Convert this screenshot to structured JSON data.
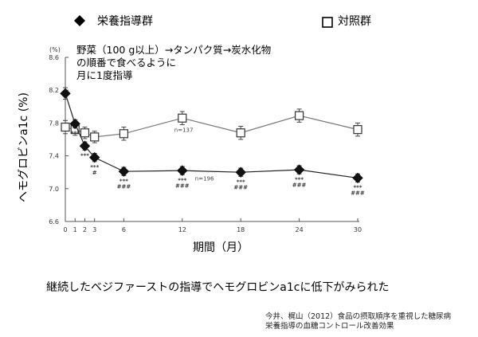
{
  "chart_data": {
    "type": "line",
    "ylabel": "ヘモグロビンa1c (%)",
    "y_unit": "(%)",
    "xlabel": "期間（月）",
    "ylim": [
      6.6,
      8.6
    ],
    "yticks": [
      "6.6",
      "7.0",
      "7.4",
      "7.8",
      "8.2",
      "8.6"
    ],
    "xticks": [
      "0",
      "1",
      "2",
      "3",
      "6",
      "12",
      "18",
      "24",
      "30"
    ],
    "legend": [
      {
        "marker": "diamond-filled",
        "label": "栄養指導群"
      },
      {
        "marker": "square-open",
        "label": "対照群"
      }
    ],
    "series": [
      {
        "name": "栄養指導群",
        "n_label": "n=196",
        "x": [
          0,
          1,
          2,
          3,
          6,
          12,
          18,
          24,
          30
        ],
        "y": [
          8.16,
          7.79,
          7.52,
          7.38,
          7.21,
          7.22,
          7.2,
          7.23,
          7.13
        ],
        "err": [
          0.07,
          0.05,
          0.05,
          0.05,
          0.05,
          0.05,
          0.05,
          0.05,
          0.05
        ]
      },
      {
        "name": "対照群",
        "n_label": "n=137",
        "x": [
          0,
          1,
          2,
          3,
          6,
          12,
          18,
          24,
          30
        ],
        "y": [
          7.75,
          7.72,
          7.68,
          7.63,
          7.67,
          7.86,
          7.68,
          7.89,
          7.72
        ],
        "err": [
          0.08,
          0.07,
          0.07,
          0.07,
          0.08,
          0.08,
          0.08,
          0.08,
          0.08
        ]
      }
    ],
    "significance": [
      {
        "x": 1,
        "marks": [
          "***"
        ]
      },
      {
        "x": 2,
        "marks": [
          "***"
        ]
      },
      {
        "x": 3,
        "marks": [
          "***",
          "#"
        ]
      },
      {
        "x": 6,
        "marks": [
          "***",
          "###"
        ]
      },
      {
        "x": 12,
        "marks": [
          "***",
          "###"
        ]
      },
      {
        "x": 18,
        "marks": [
          "***",
          "###"
        ]
      },
      {
        "x": 24,
        "marks": [
          "***",
          "###"
        ]
      },
      {
        "x": 30,
        "marks": [
          "***",
          "###"
        ]
      }
    ],
    "annotation": [
      "野菜（100 g以上）→タンパク質→炭水化物",
      "の順番で食べるように",
      "月に1度指導"
    ]
  },
  "caption": "継続したベジファーストの指導でヘモグロビンa1cに低下がみられた",
  "citation": [
    "今井、梶山（2012）食品の摂取順序を重視した糖尿病",
    "栄養指導の血糖コントロール改善効果"
  ]
}
